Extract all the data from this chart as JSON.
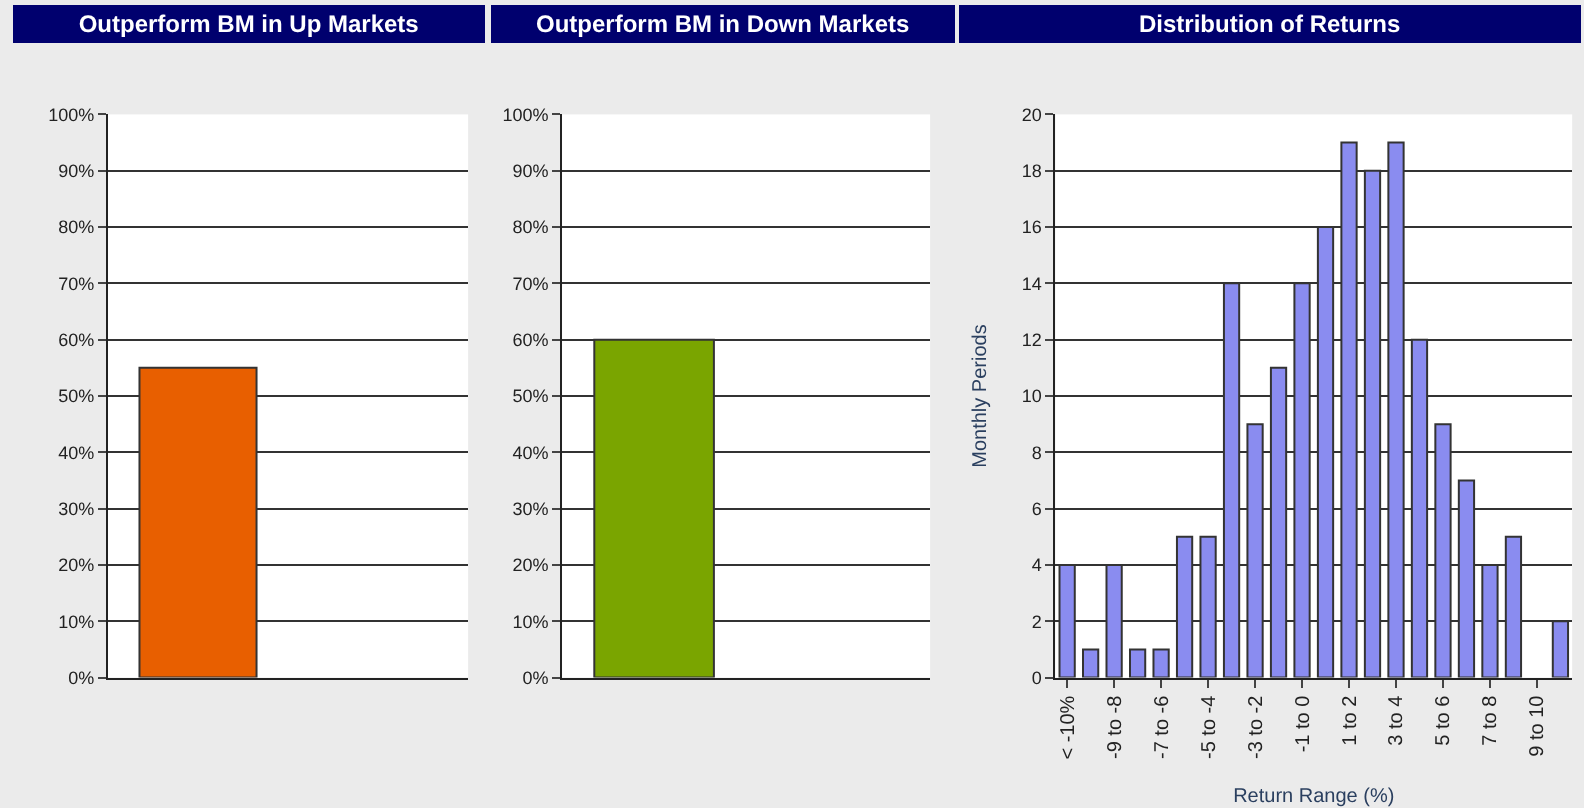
{
  "chart_data": [
    {
      "type": "bar",
      "title": "Outperform BM in Up Markets",
      "categories": [
        null,
        null
      ],
      "values": [
        55,
        null
      ],
      "color": "#e85f00",
      "ylim": [
        0,
        100
      ],
      "yticks": [
        {
          "value": 0,
          "label": "0%"
        },
        {
          "value": 10,
          "label": "10%"
        },
        {
          "value": 20,
          "label": "20%"
        },
        {
          "value": 30,
          "label": "30%"
        },
        {
          "value": 40,
          "label": "40%"
        },
        {
          "value": 50,
          "label": "50%"
        },
        {
          "value": 60,
          "label": "60%"
        },
        {
          "value": 70,
          "label": "70%"
        },
        {
          "value": 80,
          "label": "80%"
        },
        {
          "value": 90,
          "label": "90%"
        },
        {
          "value": 100,
          "label": "100%"
        }
      ],
      "grid": "y"
    },
    {
      "type": "bar",
      "title": "Outperform BM in Down Markets",
      "categories": [
        null,
        null
      ],
      "values": [
        60,
        null
      ],
      "color": "#7aa500",
      "ylim": [
        0,
        100
      ],
      "yticks": [
        {
          "value": 0,
          "label": "0%"
        },
        {
          "value": 10,
          "label": "10%"
        },
        {
          "value": 20,
          "label": "20%"
        },
        {
          "value": 30,
          "label": "30%"
        },
        {
          "value": 40,
          "label": "40%"
        },
        {
          "value": 50,
          "label": "50%"
        },
        {
          "value": 60,
          "label": "60%"
        },
        {
          "value": 70,
          "label": "70%"
        },
        {
          "value": 80,
          "label": "80%"
        },
        {
          "value": 90,
          "label": "90%"
        },
        {
          "value": 100,
          "label": "100%"
        }
      ],
      "grid": "y"
    },
    {
      "type": "bar",
      "title": "Distribution of Returns",
      "xlabel": "Return Range (%)",
      "ylabel": "Monthly Periods",
      "categories": [
        "< -10%",
        null,
        "-9 to -8",
        null,
        "-7 to -6",
        null,
        "-5 to -4",
        null,
        "-3 to -2",
        null,
        "-1 to 0",
        null,
        "1 to 2",
        null,
        "3 to 4",
        null,
        "5 to 6",
        null,
        "7 to 8",
        null,
        "9 to 10",
        null
      ],
      "values": [
        4,
        1,
        4,
        1,
        1,
        5,
        5,
        14,
        9,
        11,
        14,
        16,
        19,
        18,
        19,
        12,
        9,
        7,
        4,
        5,
        0,
        2
      ],
      "color": "#8a8cf0",
      "ylim": [
        0,
        20
      ],
      "yticks": [
        0,
        2,
        4,
        6,
        8,
        10,
        12,
        14,
        16,
        18,
        20
      ],
      "grid": "y"
    }
  ]
}
